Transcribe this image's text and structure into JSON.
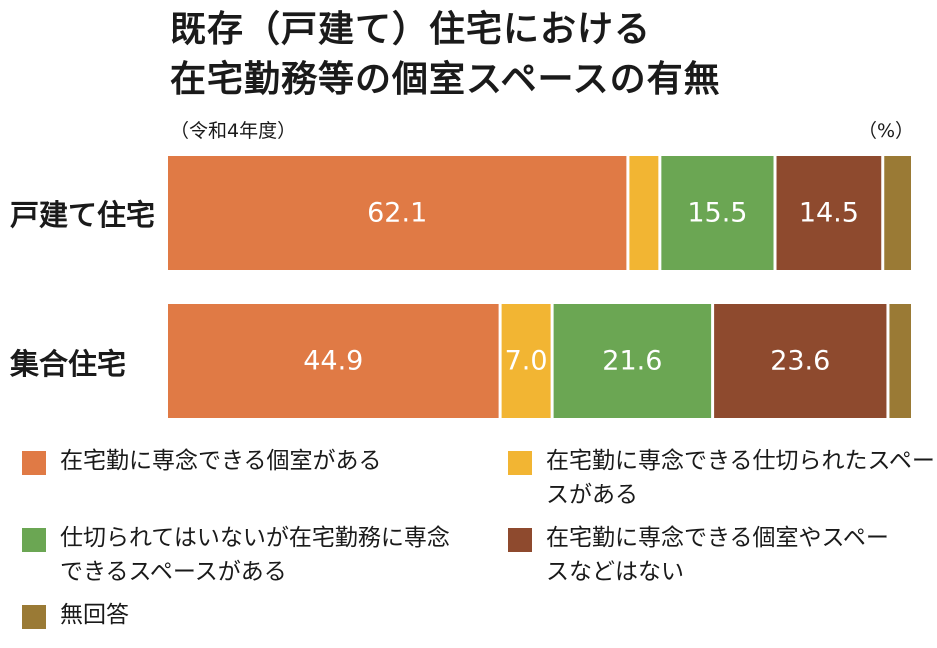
{
  "chart_data": {
    "type": "bar",
    "orientation": "horizontal-stacked",
    "title_line1": "既存（戸建て）住宅における",
    "title_line2": "在宅勤務等の個室スペースの有無",
    "subtitle": "（令和4年度）",
    "unit": "（%）",
    "categories": [
      "戸建て住宅",
      "集合住宅"
    ],
    "series": [
      {
        "name": "在宅勤に専念できる個室がある",
        "color": "#E07A45",
        "values": [
          62.1,
          44.9
        ],
        "labels": [
          "62.1",
          "44.9"
        ]
      },
      {
        "name": "在宅勤に専念できる仕切られたスペースがある",
        "color": "#F2B533",
        "values": [
          4.3,
          7.0
        ],
        "labels": [
          "",
          "7.0"
        ]
      },
      {
        "name": "仕切られてはいないが在宅勤務に専念できるスペースがある",
        "color": "#6BA653",
        "values": [
          15.5,
          21.6
        ],
        "labels": [
          "15.5",
          "21.6"
        ]
      },
      {
        "name": "在宅勤に専念できる個室やスペースなどはない",
        "color": "#8E4A2E",
        "values": [
          14.5,
          23.6
        ],
        "labels": [
          "14.5",
          "23.6"
        ]
      },
      {
        "name": "無回答",
        "color": "#9A7A35",
        "values": [
          3.6,
          2.9
        ],
        "labels": [
          "",
          ""
        ]
      }
    ],
    "xlim": [
      0,
      100
    ]
  },
  "legend": {
    "l1": "在宅勤に専念できる個室がある",
    "l2": "在宅勤に専念できる仕切られたスペースがある",
    "l3": "仕切られてはいないが在宅勤務に専念できるスペースがある",
    "l4": "在宅勤に専念できる個室やスペースなどはない",
    "l5": "無回答"
  }
}
